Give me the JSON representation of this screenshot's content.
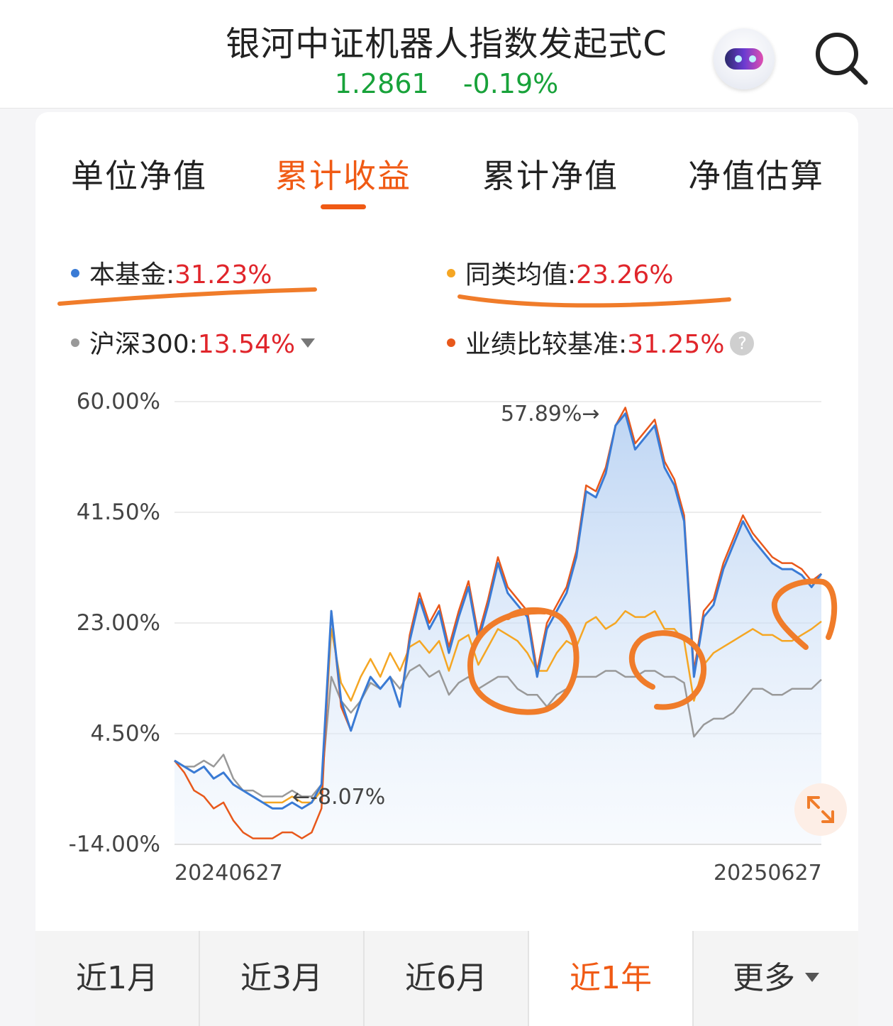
{
  "header": {
    "fund_name": "银河中证机器人指数发起式C",
    "nav": "1.2861",
    "change": "-0.19%"
  },
  "tabs": [
    {
      "label": "单位净值",
      "active": false
    },
    {
      "label": "累计收益",
      "active": true
    },
    {
      "label": "累计净值",
      "active": false
    },
    {
      "label": "净值估算",
      "active": false
    }
  ],
  "legend": [
    {
      "name": "本基金",
      "value": "31.23%",
      "color": "#3a7bd5"
    },
    {
      "name": "同类均值",
      "value": "23.26%",
      "color": "#f5a623"
    },
    {
      "name": "沪深300",
      "value": "13.54%",
      "color": "#999999"
    },
    {
      "name": "业绩比较基准",
      "value": "31.25%",
      "color": "#e8581b"
    }
  ],
  "chart_data": {
    "type": "line",
    "y_tick_labels": [
      "60.00%",
      "41.50%",
      "23.00%",
      "4.50%",
      "-14.00%"
    ],
    "ylim": [
      -14,
      60
    ],
    "x_tick_labels": [
      "20240627",
      "20250627"
    ],
    "x_range": [
      "20240627",
      "20250627"
    ],
    "annotations": {
      "max": "57.89%",
      "min": "-8.07%"
    },
    "series": [
      {
        "name": "本基金",
        "color": "#3a7bd5",
        "values": [
          0,
          -1,
          -2,
          -1,
          -3,
          -2,
          -4,
          -5,
          -6,
          -7,
          -8,
          -8,
          -7,
          -8,
          -7,
          -4,
          25,
          10,
          5,
          10,
          14,
          12,
          14,
          9,
          20,
          27,
          22,
          25,
          18,
          24,
          29,
          20,
          26,
          33,
          28,
          26,
          24,
          14,
          22,
          25,
          28,
          34,
          45,
          44,
          48,
          56,
          58,
          52,
          54,
          56,
          49,
          46,
          40,
          14,
          24,
          26,
          32,
          36,
          40,
          37,
          35,
          33,
          32,
          32,
          31,
          29,
          31.23
        ]
      },
      {
        "name": "同类均值",
        "color": "#f5a623",
        "values": [
          0,
          -1,
          -2,
          -1,
          -3,
          -2,
          -4,
          -5,
          -6,
          -7,
          -7,
          -7,
          -6,
          -7,
          -7,
          -5,
          22,
          13,
          10,
          14,
          17,
          14,
          18,
          15,
          19,
          20,
          18,
          20,
          15,
          20,
          21,
          16,
          19,
          22,
          21,
          20,
          18,
          15,
          15,
          18,
          20,
          19,
          23,
          24,
          22,
          23,
          25,
          24,
          24,
          25,
          22,
          22,
          20,
          10,
          16,
          18,
          19,
          20,
          21,
          22,
          21,
          21,
          20,
          20,
          21,
          22,
          23.26
        ]
      },
      {
        "name": "沪深300",
        "color": "#999999",
        "values": [
          0,
          -1,
          -1,
          0,
          -1,
          1,
          -3,
          -5,
          -5,
          -6,
          -6,
          -6,
          -5,
          -6,
          -6,
          -4,
          14,
          10,
          8,
          10,
          13,
          12,
          14,
          12,
          15,
          16,
          14,
          15,
          11,
          13,
          14,
          12,
          13,
          14,
          14,
          12,
          11,
          11,
          9,
          11,
          12,
          14,
          14,
          14,
          15,
          15,
          14,
          14,
          15,
          15,
          14,
          14,
          13,
          4,
          6,
          7,
          7,
          8,
          10,
          12,
          12,
          11,
          11,
          12,
          12,
          12,
          13.54
        ]
      },
      {
        "name": "业绩比较基准",
        "color": "#e8581b",
        "values": [
          0,
          -2,
          -5,
          -6,
          -8,
          -7,
          -10,
          -12,
          -13,
          -13,
          -13,
          -12,
          -12,
          -13,
          -12,
          -8,
          25,
          9,
          5,
          10,
          14,
          12,
          14,
          9,
          21,
          28,
          23,
          26,
          19,
          25,
          30,
          21,
          27,
          34,
          29,
          27,
          25,
          15,
          23,
          26,
          29,
          35,
          46,
          45,
          49,
          56,
          59,
          53,
          55,
          57,
          50,
          47,
          41,
          15,
          25,
          27,
          33,
          37,
          41,
          38,
          36,
          34,
          33,
          33,
          32,
          30,
          31.25
        ]
      }
    ]
  },
  "ranges": [
    {
      "label": "近1月",
      "active": false
    },
    {
      "label": "近3月",
      "active": false
    },
    {
      "label": "近6月",
      "active": false
    },
    {
      "label": "近1年",
      "active": true
    },
    {
      "label": "更多",
      "active": false
    }
  ]
}
